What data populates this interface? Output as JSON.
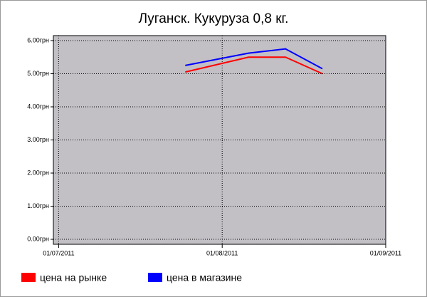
{
  "chart_data": {
    "type": "line",
    "title": "Луганск. Кукуруза 0,8 кг.",
    "x": [
      "2011-07-25",
      "2011-08-06",
      "2011-08-13",
      "2011-08-20"
    ],
    "series": [
      {
        "name": "цена на рынке",
        "color": "#ff0000",
        "values": [
          5.05,
          5.5,
          5.5,
          5.0
        ]
      },
      {
        "name": "цена в магазине",
        "color": "#0000ff",
        "values": [
          5.25,
          5.62,
          5.75,
          5.15
        ]
      }
    ],
    "xlim": [
      "2011-06-30",
      "2011-09-01"
    ],
    "xticks": [
      {
        "value": "2011-07-01",
        "label": "01/07/2011"
      },
      {
        "value": "2011-08-01",
        "label": "01/08/2011"
      },
      {
        "value": "2011-09-01",
        "label": "01/09/2011"
      }
    ],
    "ylim": [
      -0.15,
      6.15
    ],
    "yticks": [
      {
        "value": 0,
        "label": "0.00грн"
      },
      {
        "value": 1,
        "label": "1.00грн"
      },
      {
        "value": 2,
        "label": "2.00грн"
      },
      {
        "value": 3,
        "label": "3.00грн"
      },
      {
        "value": 4,
        "label": "4.00грн"
      },
      {
        "value": 5,
        "label": "5.00грн"
      },
      {
        "value": 6,
        "label": "6.00грн"
      }
    ],
    "grid": true
  }
}
